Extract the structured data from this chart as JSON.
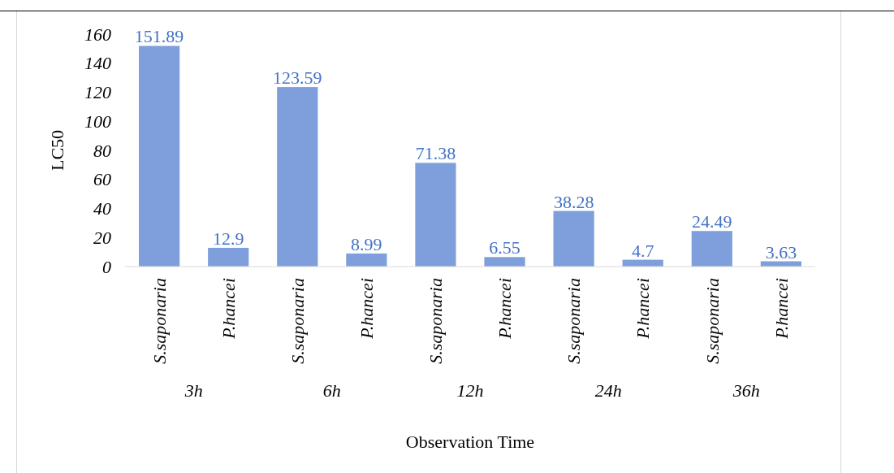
{
  "chart_data": {
    "type": "bar",
    "xlabel": "Observation Time",
    "ylabel": "LC50",
    "categories": [
      "S.saponaria",
      "P.hancei",
      "S.saponaria",
      "P.hancei",
      "S.saponaria",
      "P.hancei",
      "S.saponaria",
      "P.hancei",
      "S.saponaria",
      "P.hancei"
    ],
    "values": [
      151.89,
      12.9,
      123.59,
      8.99,
      71.38,
      6.55,
      38.28,
      4.7,
      24.49,
      3.63
    ],
    "color": "#7f9fdc",
    "data_labels": true,
    "ylim": [
      0,
      160
    ],
    "yticks": [
      0,
      20,
      40,
      60,
      80,
      100,
      120,
      140,
      160
    ],
    "grid": false,
    "annotations": [
      "3h",
      "6h",
      "12h",
      "24h",
      "36h"
    ]
  }
}
